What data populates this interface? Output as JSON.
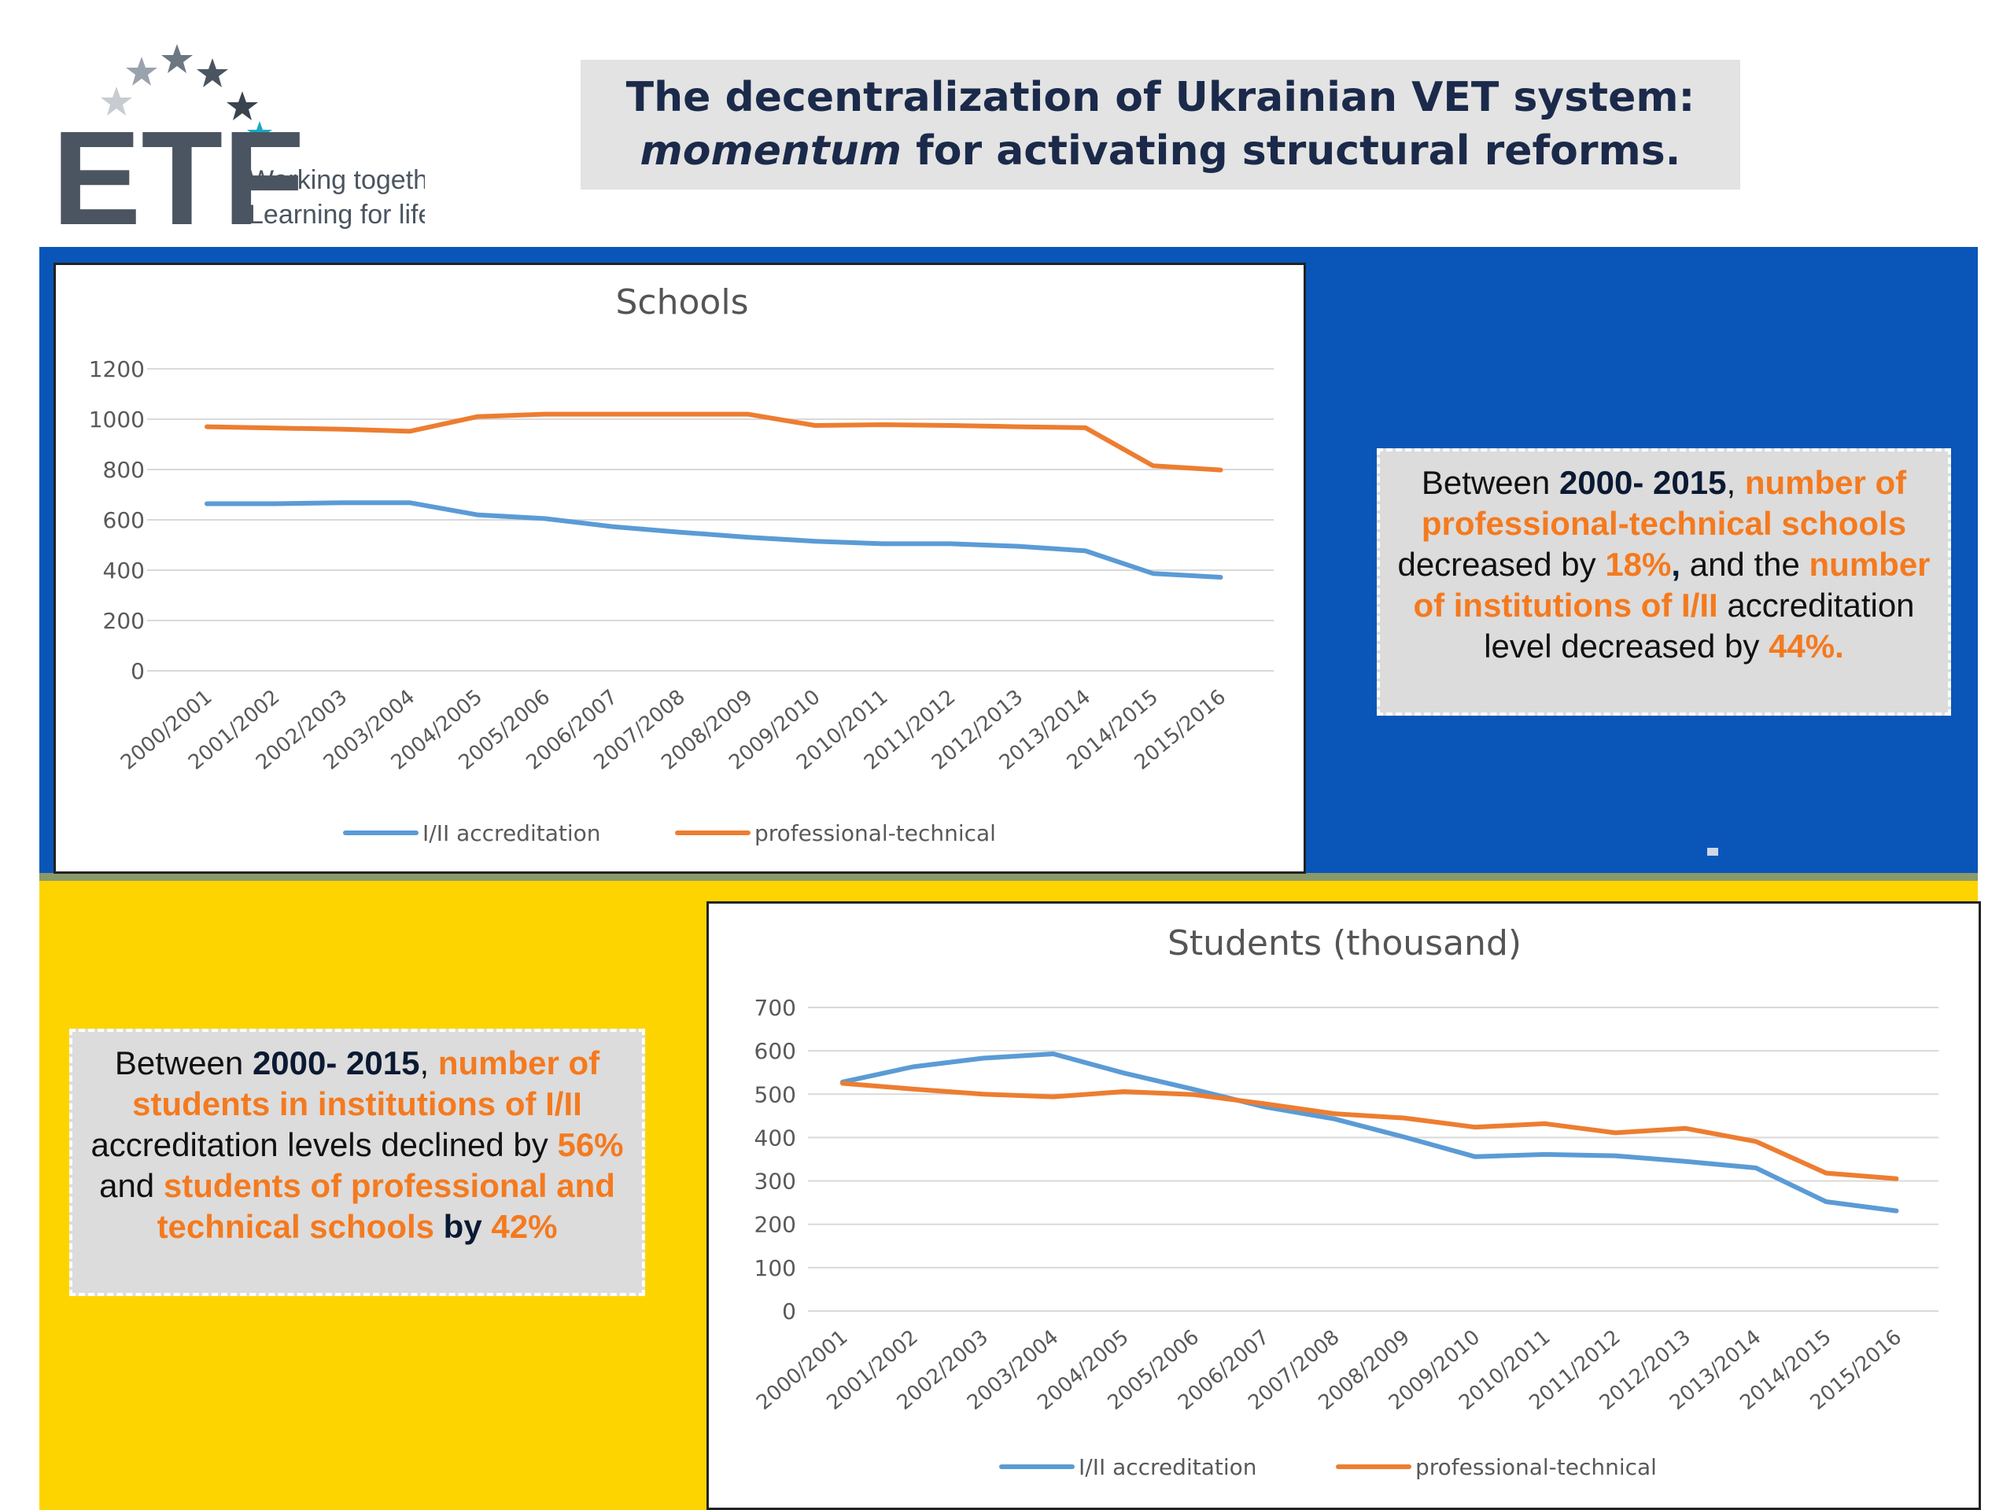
{
  "logo": {
    "text": "ETF",
    "tagline1": "Working together",
    "tagline2": "Learning for life"
  },
  "header": {
    "title_line1": "The decentralization of Ukrainian VET system:",
    "title_italic": "momentum",
    "title_line2_rest": " for activating structural reforms."
  },
  "colors": {
    "blue_band": "#0a56b8",
    "yellow_band": "#fdd400",
    "series_accreditation": "#5b9bd5",
    "series_professional": "#ed7d31",
    "highlight": "#f47a1f"
  },
  "note_schools": {
    "t1": "Between ",
    "b1": "2000- 2015",
    "t2": ",  ",
    "h1": "number of professional-technical schools",
    "t3": " decreased by ",
    "h2": "18%",
    "b2": ",",
    "t4": " and the ",
    "h3": "number of institutions of I/II",
    "t5": " accreditation level decreased by ",
    "h4": "44%."
  },
  "note_students": {
    "t1": "Between ",
    "b1": "2000- 2015",
    "t2": ",  ",
    "h1": "number of students in  institutions of I/II",
    "t3": " accreditation levels declined by ",
    "h2": "56%",
    "t4": " and ",
    "h3": "students of professional and technical schools",
    "b2": " by ",
    "h4": "42%"
  },
  "chart_data": [
    {
      "type": "line",
      "title": "Schools",
      "categories": [
        "2000/2001",
        "2001/2002",
        "2002/2003",
        "2003/2004",
        "2004/2005",
        "2005/2006",
        "2006/2007",
        "2007/2008",
        "2008/2009",
        "2009/2010",
        "2010/2011",
        "2011/2012",
        "2012/2013",
        "2013/2014",
        "2014/2015",
        "2015/2016"
      ],
      "ylim": [
        0,
        1200
      ],
      "yticks": [
        0,
        200,
        400,
        600,
        800,
        1000,
        1200
      ],
      "grid": true,
      "legend": "bottom",
      "series": [
        {
          "name": "I/II accreditation",
          "color": "#5b9bd5",
          "values": [
            664,
            664,
            668,
            668,
            620,
            605,
            573,
            551,
            531,
            515,
            505,
            505,
            495,
            477,
            387,
            372
          ]
        },
        {
          "name": "professional-technical",
          "color": "#ed7d31",
          "values": [
            970,
            965,
            960,
            952,
            1010,
            1020,
            1020,
            1020,
            1020,
            975,
            978,
            975,
            970,
            966,
            815,
            798
          ]
        }
      ]
    },
    {
      "type": "line",
      "title": "Students (thousand)",
      "categories": [
        "2000/2001",
        "2001/2002",
        "2002/2003",
        "2003/2004",
        "2004/2005",
        "2005/2006",
        "2006/2007",
        "2007/2008",
        "2008/2009",
        "2009/2010",
        "2010/2011",
        "2011/2012",
        "2012/2013",
        "2013/2014",
        "2014/2015",
        "2015/2016"
      ],
      "ylim": [
        0,
        700
      ],
      "yticks": [
        0,
        100,
        200,
        300,
        400,
        500,
        600,
        700
      ],
      "grid": true,
      "legend": "bottom",
      "series": [
        {
          "name": "I/II accreditation",
          "color": "#5b9bd5",
          "values": [
            528,
            563,
            583,
            593,
            549,
            511,
            471,
            443,
            401,
            356,
            361,
            358,
            345,
            330,
            252,
            231
          ]
        },
        {
          "name": "professional-technical",
          "color": "#ed7d31",
          "values": [
            525,
            512,
            500,
            494,
            506,
            499,
            478,
            455,
            445,
            424,
            432,
            411,
            421,
            391,
            318,
            305
          ]
        }
      ]
    }
  ]
}
